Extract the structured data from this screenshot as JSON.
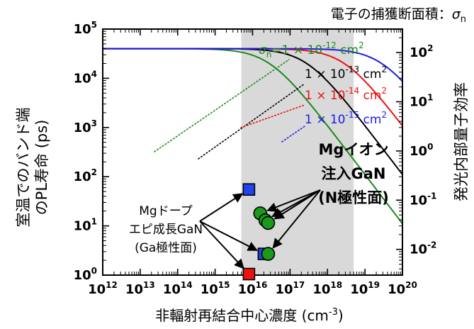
{
  "chart_data": {
    "type": "line",
    "caption_top": "電子の捕獲断面積：",
    "caption_symbol": "σ",
    "caption_sub": "n",
    "xlabel": "非輻射再結合中心濃度 (cm",
    "xlabel_sup": "-3",
    "xlabel_close": ")",
    "ylabel_left_line1": "室温でのバンド端",
    "ylabel_left_line2": "のPL寿命 (ps)",
    "ylabel_right": "発光内部量子効率",
    "x_scale": "log",
    "xlim": [
      1000000000000.0,
      1e+20
    ],
    "ylim": [
      1,
      100000
    ],
    "y_right_scale": "log",
    "y_right_range": [
      0.003,
      300
    ],
    "x_ticks": [
      {
        "value": 1000000000000.0,
        "base": "10",
        "exp": "12"
      },
      {
        "value": 10000000000000.0,
        "base": "10",
        "exp": "13"
      },
      {
        "value": 100000000000000.0,
        "base": "10",
        "exp": "14"
      },
      {
        "value": 1000000000000000.0,
        "base": "10",
        "exp": "15"
      },
      {
        "value": 1e+16,
        "base": "10",
        "exp": "16"
      },
      {
        "value": 1e+17,
        "base": "10",
        "exp": "17"
      },
      {
        "value": 1e+18,
        "base": "10",
        "exp": "18"
      },
      {
        "value": 1e+19,
        "base": "10",
        "exp": "19"
      },
      {
        "value": 1e+20,
        "base": "10",
        "exp": "20"
      }
    ],
    "y_ticks_left": [
      {
        "value": 1,
        "base": "10",
        "exp": "0"
      },
      {
        "value": 10,
        "base": "10",
        "exp": "1"
      },
      {
        "value": 100,
        "base": "10",
        "exp": "2"
      },
      {
        "value": 1000,
        "base": "10",
        "exp": "3"
      },
      {
        "value": 10000,
        "base": "10",
        "exp": "4"
      },
      {
        "value": 100000,
        "base": "10",
        "exp": "5"
      }
    ],
    "y_ticks_right": [
      {
        "value": 0.01,
        "base": "10",
        "exp": "-2"
      },
      {
        "value": 0.1,
        "base": "10",
        "exp": "-1"
      },
      {
        "value": 1,
        "base": "10",
        "exp": "0"
      },
      {
        "value": 10,
        "base": "10",
        "exp": "1"
      },
      {
        "value": 100,
        "base": "10",
        "exp": "2"
      }
    ],
    "shaded_region": {
      "x_from": 5000000000000000.0,
      "x_to": 5e+18,
      "color": "#d9d9d9"
    },
    "series": [
      {
        "color": "#1a8a1a",
        "tau_max_ps": 40000,
        "k": 3.6e-17,
        "label_prefix": "σ",
        "label_sub": "n",
        "label_main": "=1 × 10",
        "label_exp": "-12",
        "label_unit": " cm",
        "label_unit_exp": "2"
      },
      {
        "color": "#000000",
        "tau_max_ps": 40000,
        "k": 3.6e-18,
        "label_prefix": "",
        "label_sub": "",
        "label_main": "1 × 10",
        "label_exp": "-13",
        "label_unit": " cm",
        "label_unit_exp": "2"
      },
      {
        "color": "#ee1111",
        "tau_max_ps": 40000,
        "k": 3.6e-19,
        "label_prefix": "",
        "label_sub": "",
        "label_main": "1 × 10",
        "label_exp": "-14",
        "label_unit": " cm",
        "label_unit_exp": "2"
      },
      {
        "color": "#1a1aee",
        "tau_max_ps": 40000,
        "k": 3.6e-20,
        "label_prefix": "",
        "label_sub": "",
        "label_main": "1 × 10",
        "label_exp": "-15",
        "label_unit": " cm",
        "label_unit_exp": "2"
      }
    ],
    "points_mg_epi": [
      {
        "x": 8000000000000000.0,
        "y": 55,
        "color": "#2244ee"
      },
      {
        "x": 8000000000000000.0,
        "y": 1.05,
        "color": "#ee1111"
      },
      {
        "x": 2e+16,
        "y": 2.7,
        "color": "#2244ee"
      }
    ],
    "points_mg_implant": [
      {
        "x": 1.6e+16,
        "y": 18,
        "color": "#1a9a1a"
      },
      {
        "x": 2.2e+16,
        "y": 13,
        "color": "#1a9a1a"
      },
      {
        "x": 2.6e+16,
        "y": 11.5,
        "color": "#1a9a1a"
      },
      {
        "x": 2.6e+16,
        "y": 2.7,
        "color": "#1a9a1a"
      }
    ],
    "annotation_epi_lines": [
      "Mgドープ",
      "エピ成長GaN",
      "(Ga極性面)"
    ],
    "annotation_implant_lines": [
      "Mgイオン",
      "注入GaN",
      "(N極性面)"
    ]
  }
}
